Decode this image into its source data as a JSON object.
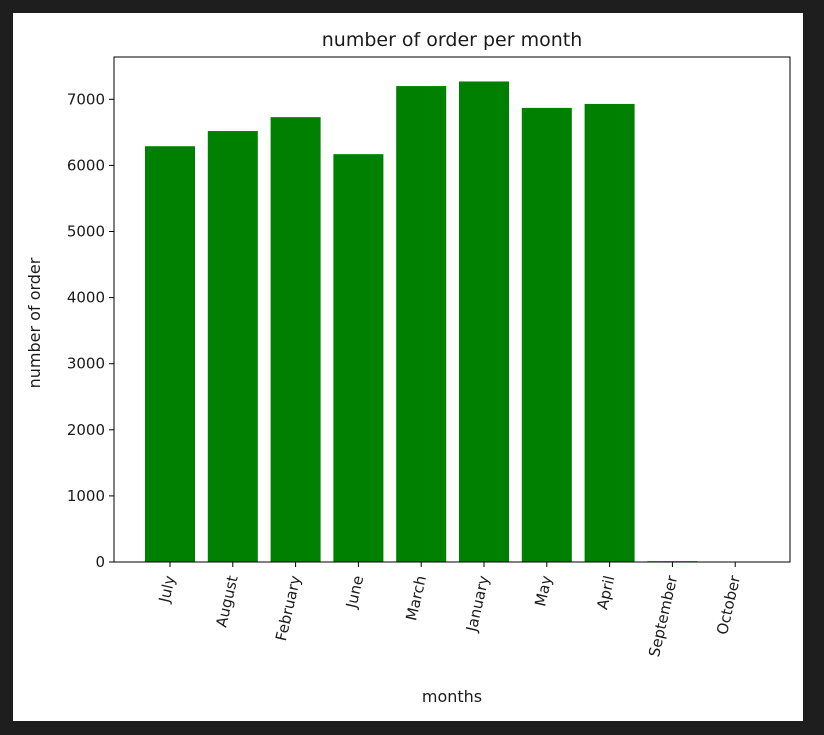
{
  "chart_data": {
    "type": "bar",
    "title": "number of order per month",
    "xlabel": "months",
    "ylabel": "number of order",
    "categories": [
      "July",
      "August",
      "February",
      "June",
      "March",
      "January",
      "May",
      "April",
      "September",
      "October"
    ],
    "values": [
      6290,
      6520,
      6730,
      6170,
      7200,
      7270,
      6870,
      6930,
      12,
      3
    ],
    "yticks": [
      0,
      1000,
      2000,
      3000,
      4000,
      5000,
      6000,
      7000
    ],
    "ylim": [
      0,
      7640
    ],
    "bar_color": "#008000",
    "grid": false,
    "legend": "none"
  }
}
